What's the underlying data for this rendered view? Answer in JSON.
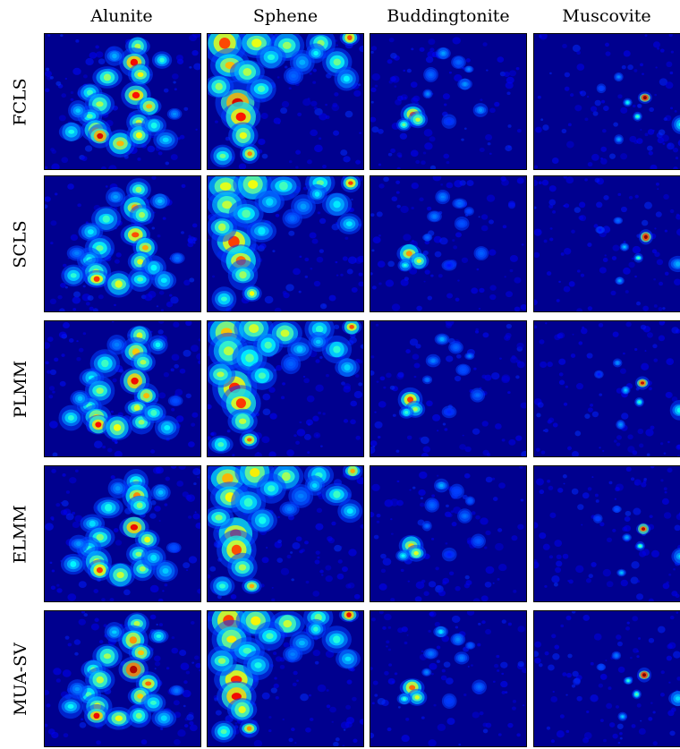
{
  "figure": {
    "columns": [
      "Alunite",
      "Sphene",
      "Buddingtonite",
      "Muscovite"
    ],
    "rows": [
      "FCLS",
      "SCLS",
      "PLMM",
      "ELMM",
      "MUA-SV"
    ],
    "colormap": "jet",
    "colormap_stops": [
      "#00008f",
      "#0000ff",
      "#00ffff",
      "#ffff00",
      "#ff0000",
      "#800000"
    ],
    "background_color": "#00008f"
  }
}
